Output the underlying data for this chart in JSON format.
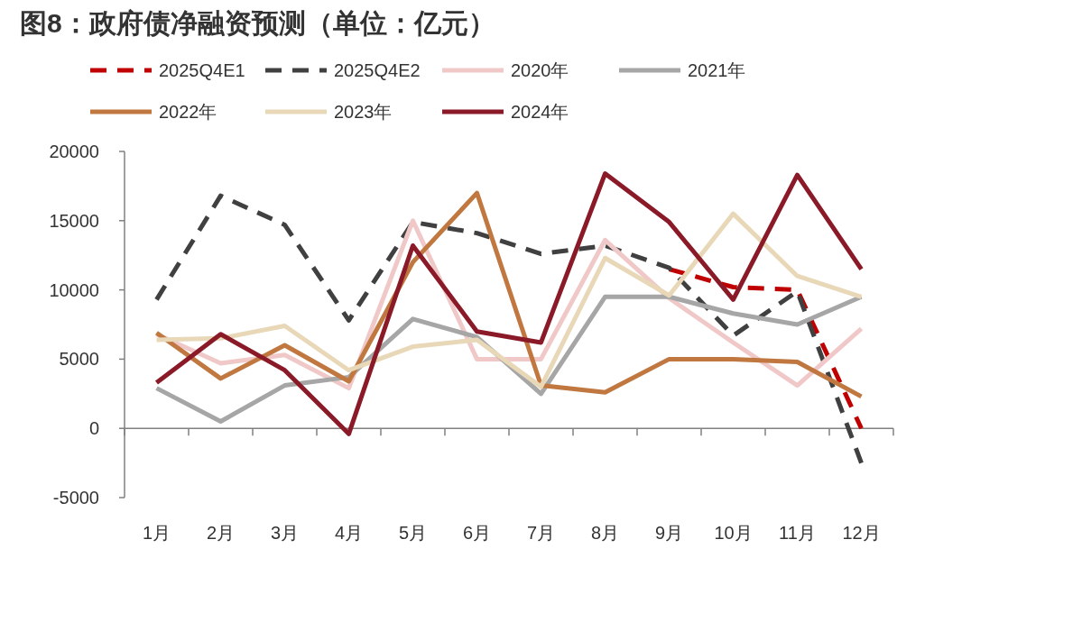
{
  "chart_data": {
    "type": "line",
    "title": "图8：政府债净融资预测（单位：亿元）",
    "categories": [
      "1月",
      "2月",
      "3月",
      "4月",
      "5月",
      "6月",
      "7月",
      "8月",
      "9月",
      "10月",
      "11月",
      "12月"
    ],
    "series": [
      {
        "name": "2025Q4E1",
        "color": "#c00000",
        "line_style": "dashed",
        "values": [
          null,
          null,
          null,
          null,
          null,
          null,
          null,
          null,
          11500,
          10200,
          10000,
          0
        ]
      },
      {
        "name": "2025Q4E2",
        "color": "#404040",
        "line_style": "dashed",
        "values": [
          9300,
          16800,
          14700,
          7800,
          14900,
          14100,
          12600,
          13200,
          11600,
          6700,
          9900,
          -2500
        ]
      },
      {
        "name": "2020年",
        "color": "#f0c8c8",
        "line_style": "solid",
        "values": [
          6800,
          4700,
          5300,
          2900,
          15000,
          5000,
          5000,
          13600,
          9400,
          6200,
          3100,
          7200
        ]
      },
      {
        "name": "2021年",
        "color": "#a6a6a6",
        "line_style": "solid",
        "values": [
          2900,
          500,
          3100,
          3700,
          7900,
          6600,
          2500,
          9500,
          9500,
          8300,
          7500,
          9500
        ]
      },
      {
        "name": "2022年",
        "color": "#c07840",
        "line_style": "solid",
        "values": [
          6900,
          3600,
          6000,
          3400,
          12000,
          17000,
          3100,
          2600,
          5000,
          5000,
          4800,
          2300
        ]
      },
      {
        "name": "2023年",
        "color": "#e8d8b8",
        "line_style": "solid",
        "values": [
          6400,
          6500,
          7400,
          4200,
          5900,
          6400,
          3000,
          12300,
          9600,
          15500,
          11000,
          9500
        ]
      },
      {
        "name": "2024年",
        "color": "#8b1a28",
        "line_style": "solid",
        "values": [
          3300,
          6800,
          4200,
          -400,
          13200,
          7000,
          6200,
          18400,
          14900,
          9300,
          18300,
          11500
        ]
      }
    ],
    "ylim": [
      -5000,
      20000
    ],
    "yticks": [
      -5000,
      0,
      5000,
      10000,
      15000,
      20000
    ],
    "legend": "top"
  }
}
